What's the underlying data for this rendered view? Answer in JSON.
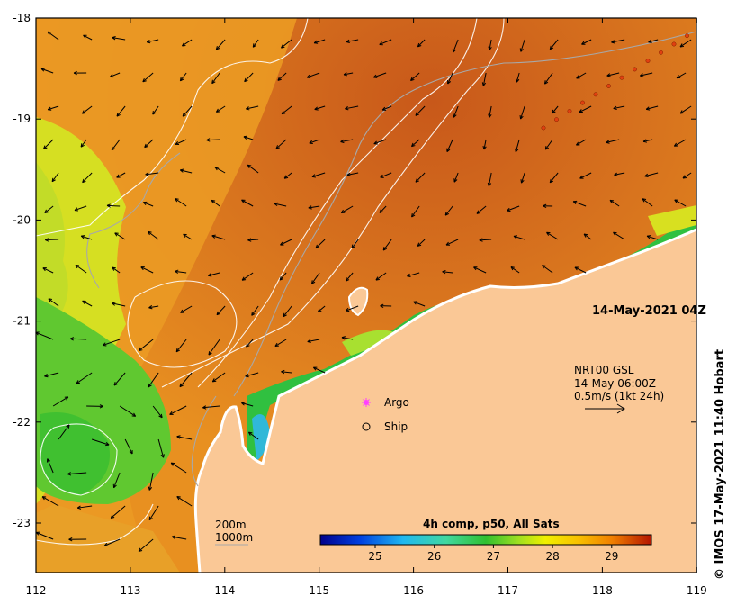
{
  "map": {
    "date_stamp": "14-May-2021 04Z",
    "credit": "© IMOS 17-May-2021 11:40 Hobart",
    "current_source": "NRT00 GSL",
    "current_time": "14-May 06:00Z",
    "current_scale": "0.5m/s (1kt 24h)",
    "legend_argo": "Argo",
    "legend_ship": "Ship",
    "contour_shallow": "200m",
    "contour_deep": "1000m",
    "colorbar_title": "4h comp, p50, All Sats",
    "colorbar_ticks": [
      "25",
      "26",
      "27",
      "28",
      "29"
    ],
    "lon_ticks": [
      "112",
      "113",
      "114",
      "115",
      "116",
      "117",
      "118",
      "119"
    ],
    "lat_ticks": [
      "-18",
      "-19",
      "-20",
      "-21",
      "-22",
      "-23"
    ]
  },
  "colors": {
    "land": "#fac896",
    "warm": "#d6701e",
    "mid": "#f0a020",
    "cool": "#d8e020",
    "green": "#40c030",
    "cyan": "#30b8d8",
    "argo": "#ff40ff"
  }
}
